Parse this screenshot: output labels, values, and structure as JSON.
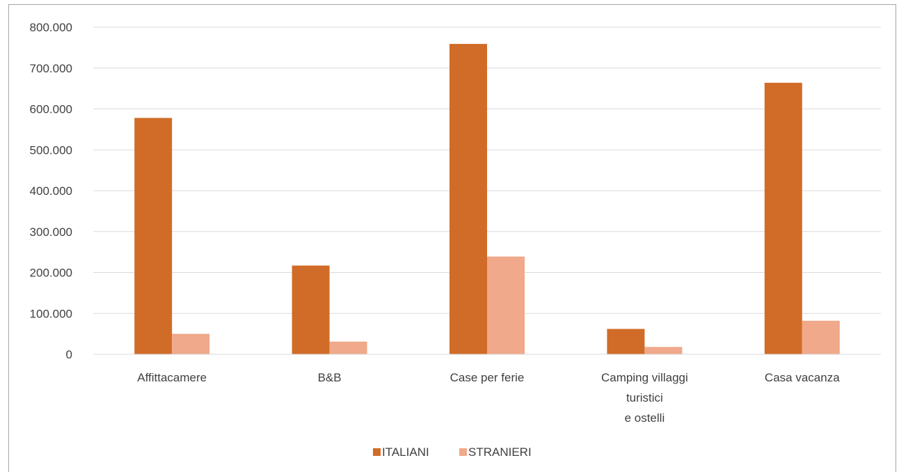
{
  "chart_data": {
    "type": "bar",
    "title": "",
    "categories": [
      [
        "Affittacamere"
      ],
      [
        "B&B"
      ],
      [
        "Case  per ferie"
      ],
      [
        "Camping villaggi",
        "turistici",
        "e ostelli"
      ],
      [
        "Casa vacanza"
      ]
    ],
    "series": [
      {
        "name": "ITALIANI",
        "color": "#d06c27",
        "values": [
          578000,
          217000,
          759000,
          62000,
          664000
        ]
      },
      {
        "name": "STRANIERI",
        "color": "#f0a98a",
        "values": [
          50000,
          31000,
          239000,
          18000,
          82000
        ]
      }
    ],
    "ylim": [
      0,
      800000
    ],
    "yticks": [
      0,
      100000,
      200000,
      300000,
      400000,
      500000,
      600000,
      700000,
      800000
    ],
    "ytick_labels": [
      "0",
      "100.000",
      "200.000",
      "300.000",
      "400.000",
      "500.000",
      "600.000",
      "700.000",
      "800.000"
    ],
    "grid": true,
    "legend_position": "bottom",
    "xlabel": "",
    "ylabel": "",
    "gridline_color": "#d9d9d9"
  }
}
